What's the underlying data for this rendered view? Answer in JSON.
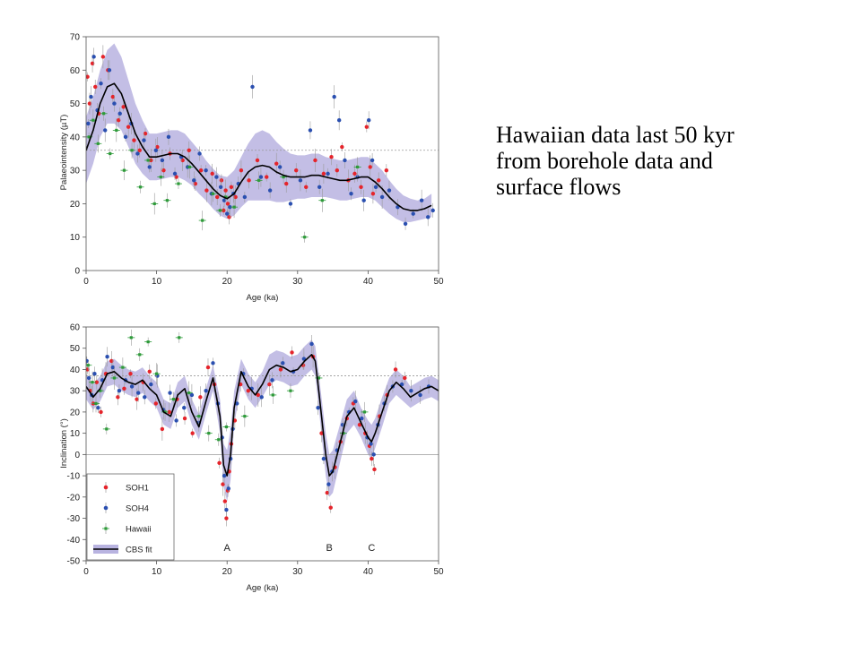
{
  "caption": {
    "lines": [
      "Hawaiian data last 50 kyr",
      "from borehole data and",
      "surface flows"
    ]
  },
  "colors": {
    "soh1": "#e5242b",
    "soh4": "#2a4fb0",
    "hawaii": "#2e9b3a",
    "band": "#b8b3e0",
    "fit": "#000000",
    "errorbar": "#9a9a9a",
    "frame": "#555555",
    "refline": "#999999"
  },
  "chart_data": [
    {
      "type": "scatter",
      "xlabel": "Age (ka)",
      "ylabel": "Palaeointensity (µT)",
      "xlim": [
        0,
        50
      ],
      "ylim": [
        0,
        70
      ],
      "xticks": [
        0,
        10,
        20,
        30,
        40,
        50
      ],
      "yticks": [
        0,
        10,
        20,
        30,
        40,
        50,
        60,
        70
      ],
      "reference_line": 36,
      "series": [
        {
          "name": "CBS fit",
          "kind": "line",
          "x": [
            0,
            1,
            2,
            3,
            4,
            5,
            6,
            7,
            8,
            9,
            10,
            11,
            12,
            13,
            14,
            15,
            16,
            17,
            18,
            19,
            20,
            21,
            22,
            23,
            24,
            25,
            26,
            27,
            28,
            29,
            30,
            31,
            32,
            33,
            34,
            35,
            36,
            37,
            38,
            39,
            40,
            41,
            42,
            43,
            44,
            45,
            46,
            47,
            48,
            49
          ],
          "y": [
            36,
            42,
            50,
            55,
            56,
            53,
            47,
            41,
            37,
            34,
            34,
            34.5,
            35,
            35,
            34,
            32,
            29.5,
            27,
            24.5,
            22.5,
            21.5,
            23,
            26.5,
            29.5,
            31,
            31.5,
            31,
            29.5,
            28.5,
            28,
            28,
            28,
            28.5,
            28.5,
            28,
            27.5,
            27,
            27,
            27.5,
            28,
            28,
            26.5,
            24.5,
            22,
            20,
            18.5,
            18,
            18,
            18.5,
            19.5
          ],
          "band_lower": [
            26,
            32,
            40,
            44,
            44,
            42,
            37,
            32,
            29,
            27,
            27,
            27.5,
            28,
            28,
            27,
            25.5,
            23,
            21,
            18.5,
            16.5,
            15.5,
            16.5,
            19,
            21,
            21,
            21,
            21,
            20.5,
            20.5,
            21,
            21.5,
            21.5,
            22,
            22,
            22,
            21.5,
            21,
            21,
            21.5,
            22,
            22,
            21,
            19,
            17,
            15.5,
            14.5,
            14.5,
            15,
            15.5,
            16
          ],
          "band_upper": [
            46,
            52,
            60,
            66,
            68,
            64,
            57,
            50,
            45,
            41,
            41,
            41.5,
            42,
            42,
            41,
            38.5,
            36,
            33,
            30.5,
            28.5,
            28,
            30,
            34,
            38,
            41,
            42,
            41,
            38.5,
            36.5,
            35,
            34.5,
            34.5,
            35,
            35,
            34,
            33.5,
            33,
            33,
            33.5,
            34,
            34,
            32,
            30,
            27,
            24.5,
            22.5,
            21.5,
            21,
            21.5,
            23
          ]
        },
        {
          "name": "SOH1",
          "kind": "points",
          "x": [
            0.2,
            0.5,
            0.9,
            1.3,
            1.8,
            2.4,
            3.1,
            3.8,
            4.6,
            5.3,
            6.0,
            6.8,
            7.6,
            8.4,
            9.2,
            10.1,
            11.0,
            11.9,
            12.8,
            13.7,
            14.6,
            15.5,
            16.3,
            17.1,
            17.9,
            18.6,
            19.2,
            19.5,
            19.8,
            20.1,
            20.3,
            20.6,
            21.2,
            22.0,
            23.1,
            24.3,
            25.6,
            27.0,
            28.4,
            29.8,
            31.2,
            32.5,
            33.7,
            34.8,
            35.6,
            36.3,
            37.2,
            38.1,
            39.0,
            39.8,
            40.3,
            40.7,
            41.5,
            42.6
          ],
          "y": [
            58,
            50,
            62,
            55,
            47,
            64,
            60,
            52,
            45,
            49,
            43,
            39,
            36,
            41,
            33,
            37,
            30,
            35,
            28,
            33,
            36,
            26,
            30,
            24,
            29,
            22,
            27,
            18,
            24,
            20,
            16,
            25,
            22,
            30,
            27,
            33,
            28,
            32,
            26,
            30,
            25,
            33,
            29,
            34,
            30,
            37,
            27,
            29,
            25,
            43,
            31,
            23,
            27,
            30
          ]
        },
        {
          "name": "SOH4",
          "kind": "points",
          "x": [
            0.3,
            0.7,
            1.1,
            1.6,
            2.1,
            2.7,
            3.3,
            4.0,
            4.8,
            5.6,
            6.4,
            7.3,
            8.2,
            9.0,
            9.9,
            10.8,
            11.7,
            12.6,
            13.5,
            14.4,
            15.3,
            16.1,
            17.0,
            17.8,
            18.5,
            19.1,
            19.6,
            20.0,
            20.4,
            20.9,
            21.6,
            22.5,
            23.6,
            24.8,
            26.1,
            27.5,
            29.0,
            30.4,
            31.8,
            33.1,
            34.3,
            35.2,
            35.9,
            36.7,
            37.6,
            38.5,
            39.4,
            40.1,
            40.6,
            41.1,
            42.0,
            43.0,
            44.2,
            45.3,
            46.4,
            47.6,
            48.5,
            49.2
          ],
          "y": [
            44,
            52,
            64,
            48,
            56,
            42,
            60,
            50,
            47,
            40,
            44,
            35,
            39,
            31,
            36,
            33,
            40,
            29,
            34,
            31,
            27,
            35,
            30,
            23,
            28,
            25,
            21,
            17,
            19,
            23,
            26,
            22,
            55,
            28,
            24,
            31,
            20,
            27,
            42,
            25,
            29,
            52,
            45,
            33,
            23,
            28,
            21,
            45,
            33,
            25,
            22,
            24,
            19,
            14,
            17,
            21,
            16,
            18
          ]
        },
        {
          "name": "Hawaii",
          "kind": "points",
          "x": [
            0.4,
            1.0,
            1.7,
            2.5,
            3.4,
            4.3,
            5.4,
            6.5,
            7.7,
            8.8,
            9.7,
            10.6,
            11.5,
            13.1,
            14.7,
            16.5,
            18.0,
            19.0,
            19.8,
            21.0,
            24.5,
            28.0,
            31.0,
            33.5,
            38.5
          ],
          "y": [
            40,
            45,
            38,
            47,
            35,
            42,
            30,
            36,
            25,
            33,
            20,
            28,
            21,
            26,
            31,
            15,
            23,
            18,
            22,
            19,
            27,
            28,
            10,
            21,
            31
          ]
        }
      ]
    },
    {
      "type": "scatter",
      "xlabel": "Age (ka)",
      "ylabel": "Inclination (°)",
      "xlim": [
        0,
        50
      ],
      "ylim": [
        -50,
        60
      ],
      "xticks": [
        0,
        10,
        20,
        30,
        40,
        50
      ],
      "yticks": [
        -50,
        -40,
        -30,
        -20,
        -10,
        0,
        10,
        20,
        30,
        40,
        50,
        60
      ],
      "reference_line": 37,
      "zero_line": 0,
      "annotations": [
        {
          "text": "A",
          "x": 20
        },
        {
          "text": "B",
          "x": 34.5
        },
        {
          "text": "C",
          "x": 40.5
        }
      ],
      "legend": {
        "location": "lower-left",
        "entries": [
          "SOH1",
          "SOH4",
          "Hawaii",
          "CBS fit"
        ]
      },
      "series": [
        {
          "name": "CBS fit",
          "kind": "line",
          "x": [
            0,
            1,
            2,
            3,
            4,
            5,
            6,
            7,
            8,
            9,
            10,
            11,
            12,
            13,
            14,
            15,
            16,
            17,
            18,
            19,
            19.5,
            20,
            20.5,
            21,
            22,
            23,
            24,
            25,
            26,
            27,
            28,
            29,
            30,
            31,
            32,
            32.5,
            33,
            34,
            34.5,
            35,
            36,
            37,
            38,
            39,
            40,
            40.5,
            41,
            42,
            43,
            44,
            45,
            46,
            47,
            48,
            49,
            50
          ],
          "y": [
            32,
            27,
            31,
            38,
            39,
            36,
            34,
            33,
            35,
            31,
            28,
            20,
            18,
            28,
            31,
            20,
            13,
            25,
            36,
            18,
            -5,
            -10,
            0,
            22,
            39,
            32,
            28,
            33,
            40,
            42,
            41,
            39,
            40,
            44,
            47,
            44,
            30,
            0,
            -10,
            -8,
            5,
            18,
            22,
            15,
            8,
            6,
            10,
            20,
            30,
            34,
            31,
            27,
            29,
            31,
            32,
            30
          ],
          "band_lower": [
            26,
            21,
            25,
            32,
            33,
            30,
            28,
            27,
            29,
            25,
            22,
            14,
            12,
            22,
            25,
            14,
            7,
            19,
            30,
            10,
            -15,
            -22,
            -12,
            14,
            33,
            26,
            22,
            27,
            33,
            35,
            34,
            32,
            33,
            37,
            40,
            37,
            22,
            -10,
            -20,
            -18,
            -4,
            10,
            14,
            8,
            0,
            -2,
            3,
            13,
            24,
            28,
            25,
            22,
            24,
            26,
            27,
            25
          ],
          "band_upper": [
            38,
            33,
            37,
            44,
            45,
            42,
            40,
            39,
            41,
            37,
            34,
            26,
            24,
            34,
            37,
            26,
            19,
            31,
            42,
            26,
            5,
            2,
            12,
            30,
            45,
            38,
            34,
            39,
            47,
            49,
            48,
            46,
            47,
            51,
            54,
            51,
            38,
            10,
            0,
            2,
            14,
            26,
            30,
            22,
            16,
            14,
            17,
            27,
            36,
            40,
            37,
            32,
            34,
            36,
            37,
            35
          ]
        },
        {
          "name": "SOH1",
          "kind": "points",
          "x": [
            0.2,
            0.6,
            1.0,
            1.5,
            2.1,
            2.8,
            3.6,
            4.5,
            5.4,
            6.3,
            7.2,
            8.1,
            9.0,
            9.9,
            10.8,
            11.8,
            12.9,
            14.0,
            15.1,
            16.2,
            17.3,
            18.2,
            18.9,
            19.4,
            19.7,
            19.9,
            20.1,
            20.3,
            20.6,
            21.1,
            21.9,
            23.0,
            24.4,
            26.0,
            27.6,
            29.2,
            30.8,
            32.2,
            33.4,
            34.2,
            34.7,
            35.3,
            36.1,
            37.0,
            37.9,
            38.8,
            39.6,
            40.2,
            40.5,
            40.9,
            41.6,
            42.7,
            43.9,
            45.2
          ],
          "y": [
            40,
            30,
            24,
            34,
            20,
            38,
            44,
            27,
            31,
            38,
            26,
            34,
            39,
            24,
            12,
            20,
            26,
            17,
            10,
            27,
            41,
            33,
            -4,
            -14,
            -22,
            -30,
            -17,
            -8,
            5,
            16,
            33,
            30,
            28,
            33,
            40,
            48,
            42,
            46,
            10,
            -18,
            -25,
            -6,
            6,
            17,
            24,
            14,
            10,
            4,
            -2,
            -7,
            18,
            28,
            40,
            36
          ]
        },
        {
          "name": "SOH4",
          "kind": "points",
          "x": [
            0.1,
            0.4,
            0.8,
            1.2,
            1.7,
            2.3,
            3.0,
            3.8,
            4.7,
            5.6,
            6.5,
            7.4,
            8.3,
            9.2,
            10.1,
            11.0,
            11.9,
            12.8,
            13.9,
            15.0,
            16.0,
            17.0,
            18.0,
            18.7,
            19.3,
            19.6,
            19.9,
            20.2,
            20.5,
            20.8,
            21.4,
            22.3,
            23.5,
            24.9,
            26.4,
            27.9,
            29.4,
            30.9,
            32.0,
            32.9,
            33.7,
            34.4,
            34.9,
            35.6,
            36.4,
            37.3,
            38.2,
            39.1,
            39.9,
            40.4,
            40.8,
            41.4,
            42.3,
            43.5,
            44.8,
            46.1,
            47.4,
            48.6
          ],
          "y": [
            44,
            36,
            28,
            38,
            22,
            35,
            46,
            41,
            30,
            35,
            32,
            29,
            27,
            33,
            37,
            21,
            29,
            16,
            22,
            28,
            15,
            30,
            43,
            24,
            8,
            -10,
            -26,
            -16,
            -2,
            12,
            24,
            38,
            31,
            27,
            35,
            43,
            39,
            45,
            52,
            22,
            -2,
            -14,
            -8,
            2,
            14,
            20,
            25,
            17,
            8,
            5,
            0,
            14,
            24,
            32,
            33,
            30,
            28,
            32
          ]
        },
        {
          "name": "Hawaii",
          "kind": "points",
          "x": [
            0.3,
            0.9,
            1.4,
            2.0,
            2.9,
            4.0,
            5.2,
            6.4,
            7.6,
            8.8,
            10.0,
            11.2,
            12.4,
            13.2,
            14.6,
            16.0,
            17.4,
            18.8,
            19.9,
            22.5,
            26.5,
            29.0,
            33.0,
            36.5,
            39.5
          ],
          "y": [
            42,
            34,
            24,
            30,
            12,
            36,
            41,
            55,
            47,
            53,
            38,
            20,
            26,
            55,
            29,
            18,
            10,
            7,
            13,
            18,
            28,
            30,
            36,
            10,
            20
          ]
        }
      ]
    }
  ]
}
